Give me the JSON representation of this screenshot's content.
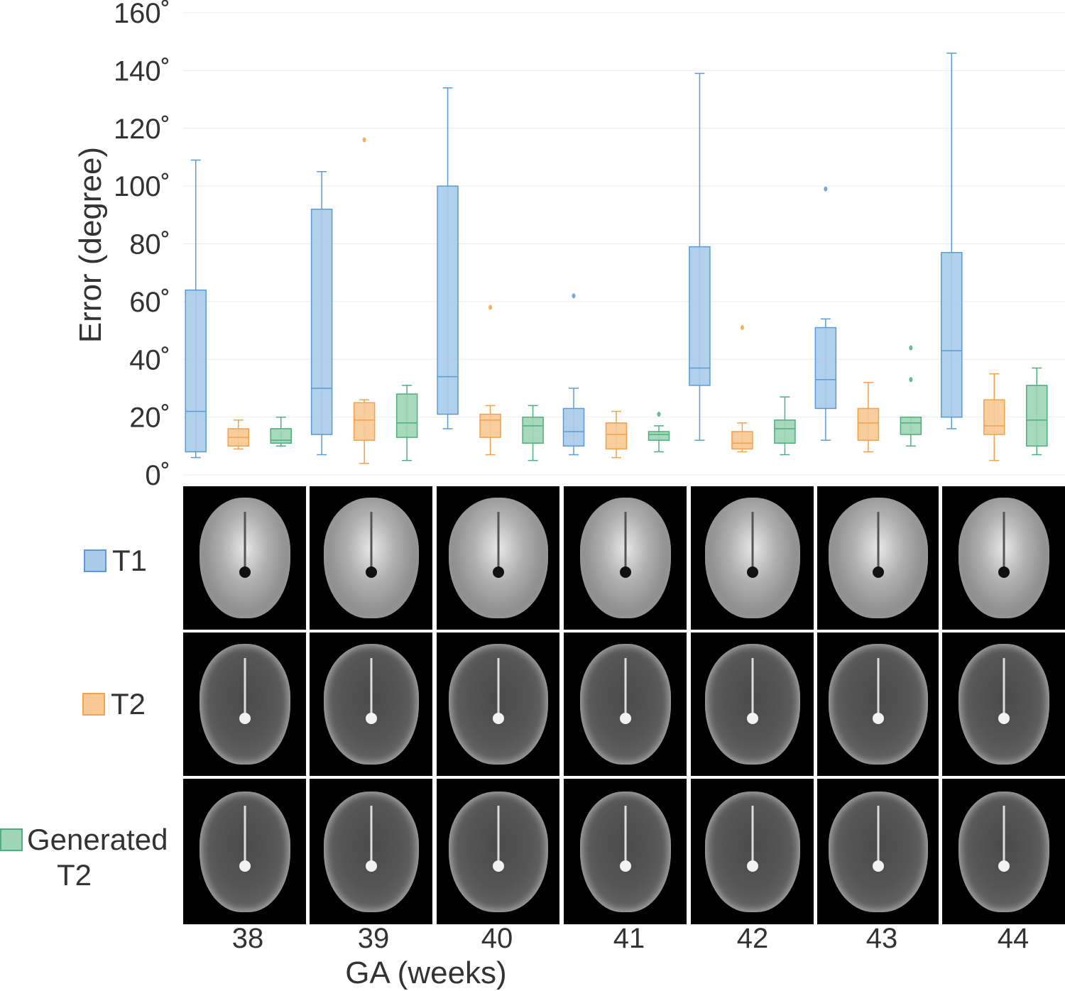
{
  "chart_data": {
    "type": "box",
    "ylabel": "Error (degree)",
    "xlabel": "GA (weeks)",
    "ylim": [
      0,
      160
    ],
    "yticks": [
      "0˚",
      "20˚",
      "40˚",
      "60˚",
      "80˚",
      "100˚",
      "120˚",
      "140˚",
      "160˚"
    ],
    "categories": [
      "38",
      "39",
      "40",
      "41",
      "42",
      "43",
      "44"
    ],
    "grid": true,
    "series": [
      {
        "name": "T1",
        "color": "#5b9bd5",
        "boxes": [
          {
            "min": 6,
            "q1": 8,
            "median": 22,
            "q3": 64,
            "max": 109,
            "outliers": []
          },
          {
            "min": 7,
            "q1": 14,
            "median": 30,
            "q3": 92,
            "max": 105,
            "outliers": []
          },
          {
            "min": 16,
            "q1": 21,
            "median": 34,
            "q3": 100,
            "max": 134,
            "outliers": []
          },
          {
            "min": 7,
            "q1": 10,
            "median": 15,
            "q3": 23,
            "max": 30,
            "outliers": [
              62
            ]
          },
          {
            "min": 12,
            "q1": 31,
            "median": 37,
            "q3": 79,
            "max": 139,
            "outliers": []
          },
          {
            "min": 12,
            "q1": 23,
            "median": 33,
            "q3": 51,
            "max": 54,
            "outliers": [
              99
            ]
          },
          {
            "min": 16,
            "q1": 20,
            "median": 43,
            "q3": 77,
            "max": 146,
            "outliers": []
          }
        ]
      },
      {
        "name": "T2",
        "color": "#f5a04a",
        "boxes": [
          {
            "min": 9,
            "q1": 10,
            "median": 13,
            "q3": 16,
            "max": 19,
            "outliers": []
          },
          {
            "min": 4,
            "q1": 12,
            "median": 19,
            "q3": 25,
            "max": 26,
            "outliers": [
              116
            ]
          },
          {
            "min": 7,
            "q1": 13,
            "median": 19,
            "q3": 21,
            "max": 24,
            "outliers": [
              58
            ]
          },
          {
            "min": 6,
            "q1": 9,
            "median": 14,
            "q3": 18,
            "max": 22,
            "outliers": []
          },
          {
            "min": 8,
            "q1": 9,
            "median": 11,
            "q3": 15,
            "max": 18,
            "outliers": [
              51
            ]
          },
          {
            "min": 8,
            "q1": 12,
            "median": 18,
            "q3": 23,
            "max": 32,
            "outliers": []
          },
          {
            "min": 5,
            "q1": 14,
            "median": 17,
            "q3": 26,
            "max": 35,
            "outliers": []
          }
        ]
      },
      {
        "name": "Generated T2",
        "color": "#4caf7d",
        "boxes": [
          {
            "min": 10,
            "q1": 11,
            "median": 12,
            "q3": 16,
            "max": 20,
            "outliers": []
          },
          {
            "min": 5,
            "q1": 13,
            "median": 18,
            "q3": 28,
            "max": 31,
            "outliers": []
          },
          {
            "min": 5,
            "q1": 11,
            "median": 17,
            "q3": 20,
            "max": 24,
            "outliers": []
          },
          {
            "min": 8,
            "q1": 12,
            "median": 14,
            "q3": 15,
            "max": 17,
            "outliers": [
              21
            ]
          },
          {
            "min": 7,
            "q1": 11,
            "median": 16,
            "q3": 19,
            "max": 27,
            "outliers": []
          },
          {
            "min": 10,
            "q1": 14,
            "median": 18,
            "q3": 20,
            "max": 20,
            "outliers": [
              33,
              44
            ]
          },
          {
            "min": 7,
            "q1": 10,
            "median": 19,
            "q3": 31,
            "max": 37,
            "outliers": []
          }
        ]
      }
    ]
  },
  "legend": {
    "t1_label": "T1",
    "t2_label": "T2",
    "gen_label_line1": "Generated",
    "gen_label_line2": "T2"
  },
  "image_grid": {
    "rows": [
      "T1",
      "T2",
      "Generated T2"
    ],
    "row_colors": {
      "T1": "#bdbdbd",
      "T2": "#5a5a5a",
      "Generated T2": "#5e5e5e"
    }
  }
}
